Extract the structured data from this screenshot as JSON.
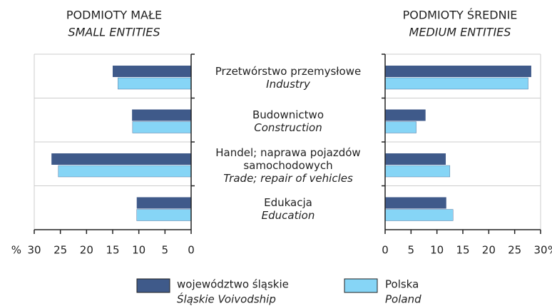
{
  "chart_data": {
    "type": "butterfly_bar",
    "categories": [
      "Przetwórstwo przemysłowe",
      "Budownictwo",
      "Handel; naprawa pojazdów samochodowych",
      "Edukacja"
    ],
    "categories_en": [
      "Industry",
      "Construction",
      "Trade; repair of vehicles",
      "Education"
    ],
    "series": [
      {
        "name": "województwo śląskie",
        "name_en": "Śląskie Voivodship",
        "color": "#3f5a8a"
      },
      {
        "name": "Polska",
        "name_en": "Poland",
        "color": "#86d5f6"
      }
    ],
    "grid": true,
    "panels": [
      {
        "title": "PODMIOTY MAŁE",
        "subtitle": "SMALL ENTITIES",
        "unit": "%",
        "xlim": [
          30,
          0
        ],
        "xticks": [
          30,
          25,
          20,
          15,
          10,
          5,
          0
        ],
        "values": [
          [
            15.0,
            11.3,
            26.7,
            10.4
          ],
          [
            14.0,
            11.2,
            25.4,
            10.4
          ]
        ]
      },
      {
        "title": "PODMIOTY ŚREDNIE",
        "subtitle": "MEDIUM ENTITIES",
        "unit": "%",
        "xlim": [
          0,
          30
        ],
        "xticks": [
          0,
          5,
          10,
          15,
          20,
          25,
          30
        ],
        "values": [
          [
            28.2,
            7.8,
            11.7,
            11.8
          ],
          [
            27.6,
            6.0,
            12.5,
            13.1
          ]
        ]
      }
    ]
  }
}
